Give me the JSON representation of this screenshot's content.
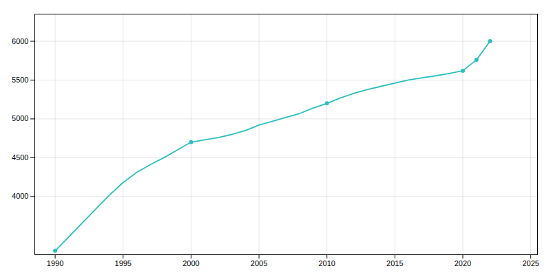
{
  "chart_data": {
    "type": "line",
    "x": [
      1990,
      1991,
      1992,
      1993,
      1994,
      1995,
      1996,
      1997,
      1998,
      1999,
      2000,
      2001,
      2002,
      2003,
      2004,
      2005,
      2006,
      2007,
      2008,
      2009,
      2010,
      2011,
      2012,
      2013,
      2014,
      2015,
      2016,
      2017,
      2018,
      2019,
      2020,
      2021,
      2022
    ],
    "series": [
      {
        "type": "line",
        "color": "#2ABFBF",
        "values": [
          3300,
          3480,
          3660,
          3840,
          4020,
          4180,
          4310,
          4410,
          4500,
          4600,
          4700,
          4730,
          4760,
          4800,
          4850,
          4920,
          4970,
          5020,
          5070,
          5140,
          5200,
          5270,
          5330,
          5380,
          5420,
          5460,
          5500,
          5530,
          5555,
          5585,
          5620,
          5760,
          6000
        ]
      },
      {
        "type": "scatter",
        "color": "#2ABFBF",
        "marker": "circle",
        "x": [
          1990,
          2000,
          2010,
          2020,
          2021,
          2022
        ],
        "values": [
          3300,
          4700,
          5200,
          5620,
          5760,
          6000
        ]
      }
    ],
    "xlim": [
      1988.5,
      2025.5
    ],
    "ylim": [
      3250,
      6350
    ],
    "xticks": [
      1990,
      1995,
      2000,
      2005,
      2010,
      2015,
      2020,
      2025
    ],
    "yticks": [
      4000,
      4500,
      5000,
      5500,
      6000
    ],
    "grid": true
  }
}
